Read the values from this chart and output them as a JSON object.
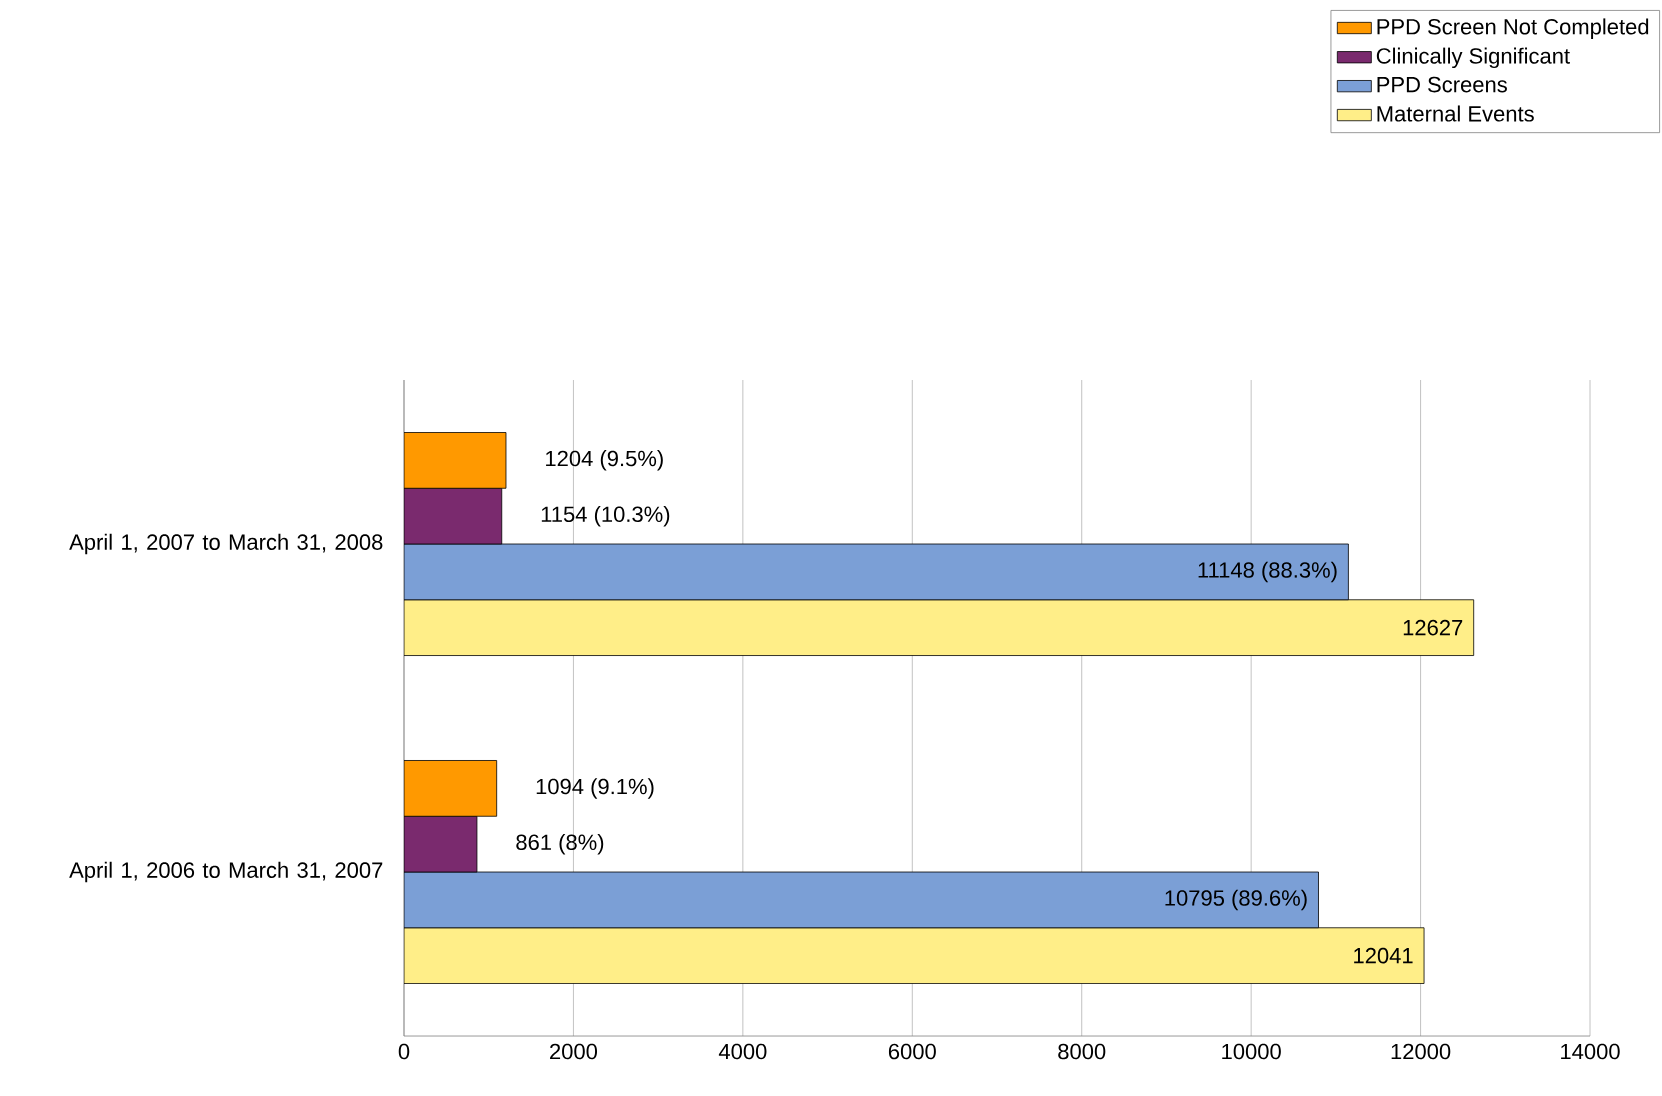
{
  "chart_data": {
    "type": "bar",
    "orientation": "horizontal",
    "categories": [
      "April 1, 2007 to March 31, 2008",
      "April 1, 2006 to March 31, 2007"
    ],
    "series": [
      {
        "name": "Maternal Events",
        "color": "#ffee88",
        "values": [
          12627,
          12041
        ],
        "value_labels": [
          "12627",
          "12041"
        ]
      },
      {
        "name": "PPD Screens",
        "color": "#7b9fd6",
        "values": [
          11148,
          10795
        ],
        "value_labels": [
          "11148 (88.3%)",
          "10795 (89.6%)"
        ]
      },
      {
        "name": "Clinically Significant",
        "color": "#7a2a6e",
        "values": [
          1154,
          861
        ],
        "value_labels": [
          "1154 (10.3%)",
          "861 (8%)"
        ]
      },
      {
        "name": "PPD Screen Not Completed",
        "color": "#ff9900",
        "values": [
          1204,
          1094
        ],
        "value_labels": [
          "1204 (9.5%)",
          "1094 (9.1%)"
        ]
      }
    ],
    "xlim": [
      0,
      14000
    ],
    "xticks": [
      0,
      2000,
      4000,
      6000,
      8000,
      10000,
      12000,
      14000
    ],
    "grid": "x",
    "legend": "top right"
  }
}
